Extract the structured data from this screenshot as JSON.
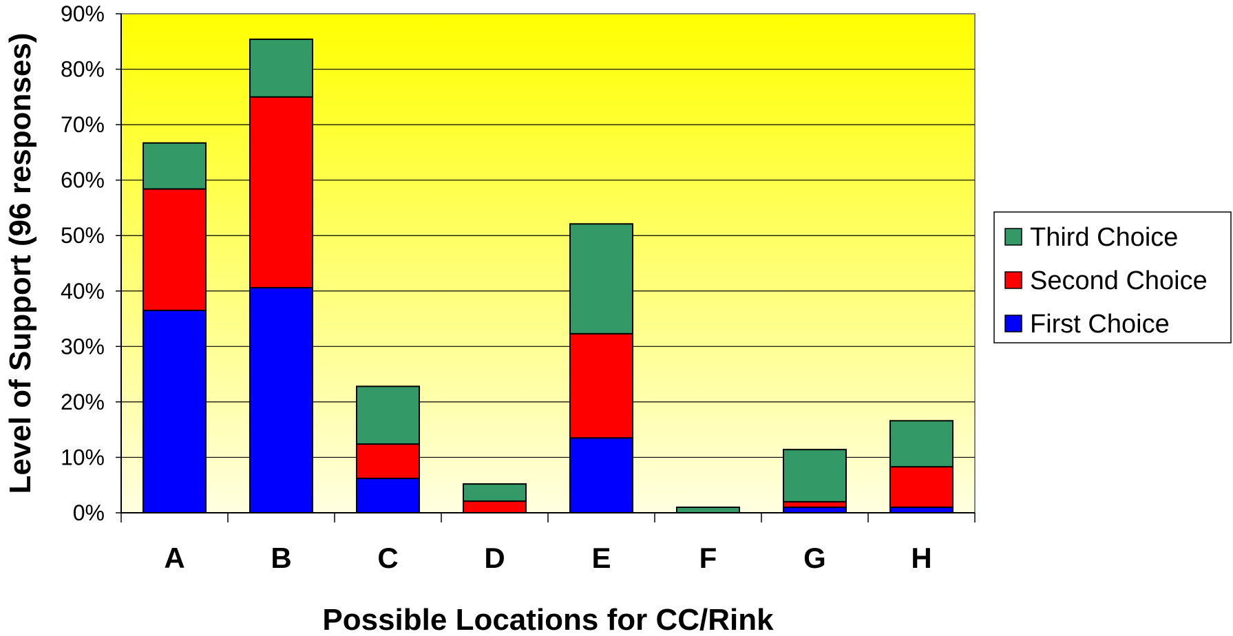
{
  "chart_data": {
    "type": "bar",
    "stacked": true,
    "xlabel": "Possible Locations for CC/Rink",
    "ylabel": "Level of Support (96 responses)",
    "ylim": [
      0,
      90
    ],
    "yticks": [
      "0%",
      "10%",
      "20%",
      "30%",
      "40%",
      "50%",
      "60%",
      "70%",
      "80%",
      "90%"
    ],
    "grid": true,
    "legend_position": "right",
    "categories": [
      "A",
      "B",
      "C",
      "D",
      "E",
      "F",
      "G",
      "H"
    ],
    "series": [
      {
        "name": "First Choice",
        "color": "#0000ff",
        "values": [
          36.5,
          40.6,
          6.2,
          0.0,
          13.5,
          0.0,
          1.0,
          1.0
        ]
      },
      {
        "name": "Second Choice",
        "color": "#ff0000",
        "values": [
          21.9,
          34.4,
          6.2,
          2.1,
          18.8,
          0.0,
          1.0,
          7.3
        ]
      },
      {
        "name": "Third Choice",
        "color": "#339966",
        "values": [
          8.3,
          10.4,
          10.4,
          3.1,
          19.8,
          1.0,
          9.4,
          8.3
        ]
      }
    ],
    "legend": [
      "Third Choice",
      "Second Choice",
      "First Choice"
    ],
    "background_gradient": [
      "#ffff00",
      "#ffffe0"
    ]
  }
}
